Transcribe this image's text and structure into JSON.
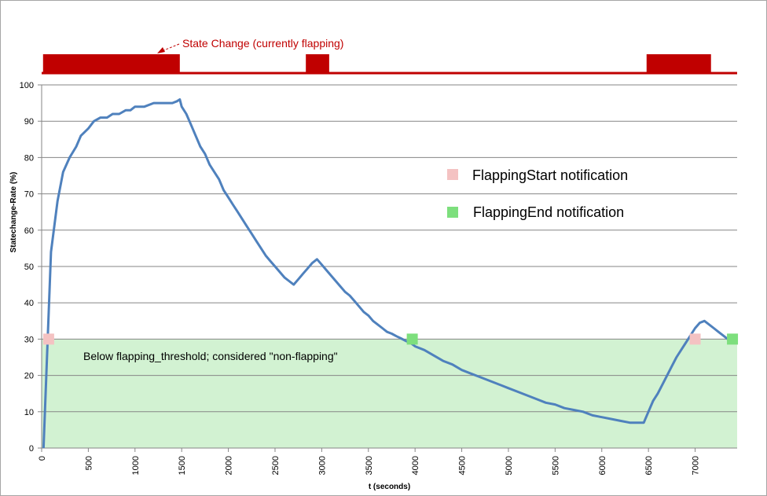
{
  "chart_data": {
    "type": "line",
    "title": "",
    "xlabel": "t (seconds)",
    "ylabel": "Statechange-Rate  (%)",
    "xlim": [
      0,
      7450
    ],
    "ylim": [
      0,
      100
    ],
    "x_ticks": [
      0,
      500,
      1000,
      1500,
      2000,
      2500,
      3000,
      3500,
      4000,
      4500,
      5000,
      5500,
      6000,
      6500,
      7000
    ],
    "y_ticks": [
      0,
      10,
      20,
      30,
      40,
      50,
      60,
      70,
      80,
      90,
      100
    ],
    "grid": true,
    "threshold": {
      "value": 30,
      "label": "Below flapping_threshold; considered \"non-flapping\"",
      "color": "#d2f2d2"
    },
    "series": [
      {
        "color": "#4f81bd",
        "points": [
          [
            20,
            0
          ],
          [
            100,
            54
          ],
          [
            170,
            68
          ],
          [
            230,
            76
          ],
          [
            300,
            80
          ],
          [
            370,
            83
          ],
          [
            420,
            86
          ],
          [
            500,
            88
          ],
          [
            560,
            90
          ],
          [
            630,
            91
          ],
          [
            700,
            91
          ],
          [
            760,
            92
          ],
          [
            830,
            92
          ],
          [
            900,
            93
          ],
          [
            950,
            93
          ],
          [
            1000,
            94
          ],
          [
            1100,
            94
          ],
          [
            1200,
            95
          ],
          [
            1300,
            95
          ],
          [
            1400,
            95
          ],
          [
            1450,
            95.5
          ],
          [
            1480,
            96
          ],
          [
            1500,
            94
          ],
          [
            1550,
            92
          ],
          [
            1600,
            89
          ],
          [
            1650,
            86
          ],
          [
            1700,
            83
          ],
          [
            1750,
            81
          ],
          [
            1800,
            78
          ],
          [
            1850,
            76
          ],
          [
            1900,
            74
          ],
          [
            1950,
            71
          ],
          [
            2000,
            69
          ],
          [
            2050,
            67
          ],
          [
            2100,
            65
          ],
          [
            2150,
            63
          ],
          [
            2200,
            61
          ],
          [
            2250,
            59
          ],
          [
            2300,
            57
          ],
          [
            2350,
            55
          ],
          [
            2400,
            53
          ],
          [
            2450,
            51.5
          ],
          [
            2500,
            50
          ],
          [
            2550,
            48.5
          ],
          [
            2600,
            47
          ],
          [
            2650,
            46
          ],
          [
            2700,
            45
          ],
          [
            2750,
            46.5
          ],
          [
            2800,
            48
          ],
          [
            2850,
            49.5
          ],
          [
            2900,
            51
          ],
          [
            2950,
            52
          ],
          [
            3000,
            50.5
          ],
          [
            3050,
            49
          ],
          [
            3100,
            47.5
          ],
          [
            3150,
            46
          ],
          [
            3200,
            44.5
          ],
          [
            3250,
            43
          ],
          [
            3300,
            42
          ],
          [
            3350,
            40.5
          ],
          [
            3400,
            39
          ],
          [
            3450,
            37.5
          ],
          [
            3500,
            36.5
          ],
          [
            3550,
            35
          ],
          [
            3600,
            34
          ],
          [
            3650,
            33
          ],
          [
            3700,
            32
          ],
          [
            3750,
            31.5
          ],
          [
            3800,
            30.8
          ],
          [
            3850,
            30.2
          ],
          [
            3900,
            29.5
          ],
          [
            3950,
            29
          ],
          [
            4000,
            28
          ],
          [
            4100,
            27
          ],
          [
            4200,
            25.5
          ],
          [
            4300,
            24
          ],
          [
            4400,
            23
          ],
          [
            4500,
            21.5
          ],
          [
            4600,
            20.5
          ],
          [
            4700,
            19.5
          ],
          [
            4800,
            18.5
          ],
          [
            4900,
            17.5
          ],
          [
            5000,
            16.5
          ],
          [
            5100,
            15.5
          ],
          [
            5200,
            14.5
          ],
          [
            5300,
            13.5
          ],
          [
            5400,
            12.5
          ],
          [
            5500,
            12
          ],
          [
            5600,
            11
          ],
          [
            5700,
            10.5
          ],
          [
            5800,
            10
          ],
          [
            5900,
            9
          ],
          [
            6000,
            8.5
          ],
          [
            6100,
            8
          ],
          [
            6200,
            7.5
          ],
          [
            6300,
            7
          ],
          [
            6400,
            7
          ],
          [
            6450,
            7
          ],
          [
            6500,
            10
          ],
          [
            6550,
            13
          ],
          [
            6600,
            15
          ],
          [
            6650,
            17.5
          ],
          [
            6700,
            20
          ],
          [
            6750,
            22.5
          ],
          [
            6800,
            25
          ],
          [
            6850,
            27
          ],
          [
            6900,
            29
          ],
          [
            6950,
            31
          ],
          [
            7000,
            33
          ],
          [
            7050,
            34.5
          ],
          [
            7100,
            35
          ],
          [
            7150,
            34
          ],
          [
            7200,
            33
          ],
          [
            7250,
            32
          ],
          [
            7300,
            31
          ],
          [
            7350,
            30
          ],
          [
            7400,
            29.5
          ]
        ]
      }
    ],
    "markers": {
      "flapping_start": {
        "label": "FlappingStart notification",
        "color": "#f4c2c2",
        "points": [
          [
            75,
            30
          ],
          [
            7000,
            30
          ]
        ]
      },
      "flapping_end": {
        "label": "FlappingEnd notification",
        "color": "#7ddf7d",
        "points": [
          [
            3970,
            30
          ],
          [
            7400,
            30
          ]
        ]
      }
    },
    "state_change": {
      "label": "State Change (currently flapping)",
      "color": "#c00000",
      "intervals": [
        [
          15,
          1480
        ],
        [
          2830,
          3080
        ],
        [
          6480,
          7170
        ]
      ]
    }
  }
}
